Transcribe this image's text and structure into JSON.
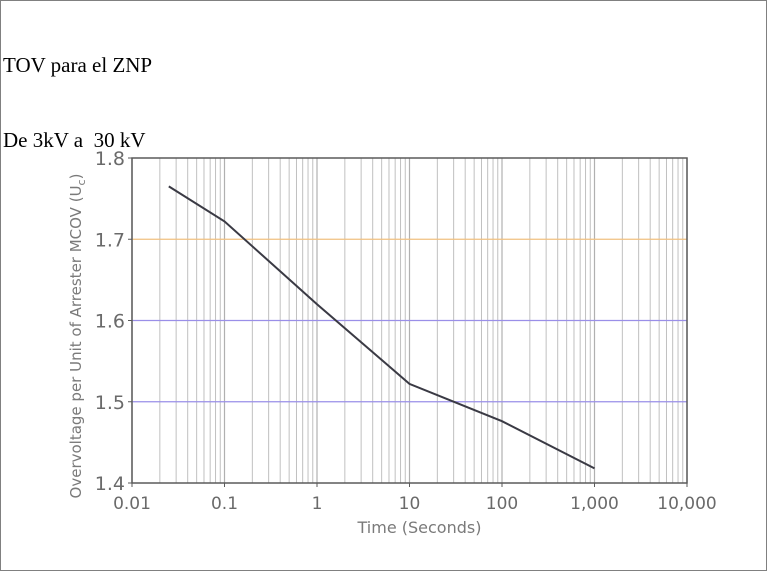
{
  "header": {
    "line1": "TOV para el ZNP",
    "line2": "De 3kV a  30 kV"
  },
  "chart_data": {
    "type": "line",
    "xscale": "log",
    "xlim": [
      0.01,
      10000
    ],
    "ylim": [
      1.4,
      1.8
    ],
    "xlabel": "Time (Seconds)",
    "ylabel": "Overvoltage per Unit of Arrester MCOV (U",
    "ylabel_subscript": "c",
    "ylabel_suffix": ")",
    "x_ticks": [
      {
        "value": 0.01,
        "label": "0.01"
      },
      {
        "value": 0.1,
        "label": "0.1"
      },
      {
        "value": 1,
        "label": "1"
      },
      {
        "value": 10,
        "label": "10"
      },
      {
        "value": 100,
        "label": "100"
      },
      {
        "value": 1000,
        "label": "1,000"
      },
      {
        "value": 10000,
        "label": "10,000"
      }
    ],
    "y_ticks": [
      {
        "value": 1.8,
        "label": "1.8"
      },
      {
        "value": 1.7,
        "label": "1.7"
      },
      {
        "value": 1.6,
        "label": "1.6"
      },
      {
        "value": 1.5,
        "label": "1.5"
      },
      {
        "value": 1.4,
        "label": "1.4"
      }
    ],
    "grid": true,
    "colors": {
      "curve": "#3a3a44",
      "frame": "#5a5a5a",
      "grid_1_7": "#f0c080",
      "grid_1_6": "#9a8fe8",
      "grid_1_5": "#9a8fe8",
      "minor_grid": "#c0c0c0"
    },
    "series": [
      {
        "x": [
          0.025,
          0.1,
          1,
          10,
          30,
          100,
          1000
        ],
        "y": [
          1.765,
          1.722,
          1.62,
          1.522,
          1.5,
          1.476,
          1.418
        ]
      }
    ]
  }
}
